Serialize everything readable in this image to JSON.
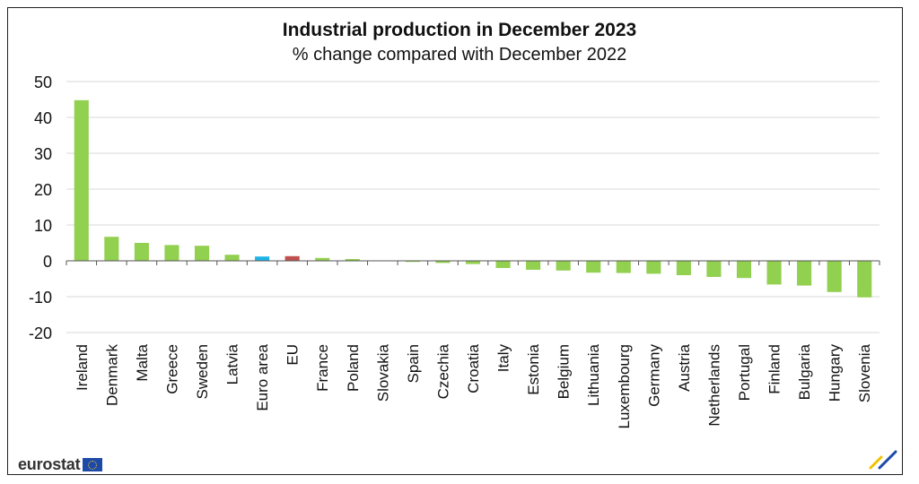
{
  "chart_data": {
    "type": "bar",
    "title": "Industrial production in December 2023",
    "subtitle": "% change compared with December 2022",
    "categories": [
      "Ireland",
      "Denmark",
      "Malta",
      "Greece",
      "Sweden",
      "Latvia",
      "Euro area",
      "EU",
      "France",
      "Poland",
      "Slovakia",
      "Spain",
      "Czechia",
      "Croatia",
      "Italy",
      "Estonia",
      "Belgium",
      "Lithuania",
      "Luxembourg",
      "Germany",
      "Austria",
      "Netherlands",
      "Portugal",
      "Finland",
      "Bulgaria",
      "Hungary",
      "Slovenia"
    ],
    "values": [
      44.8,
      6.7,
      5.0,
      4.4,
      4.2,
      1.7,
      1.2,
      1.3,
      0.8,
      0.5,
      0.0,
      -0.3,
      -0.6,
      -0.9,
      -2.0,
      -2.5,
      -2.7,
      -3.3,
      -3.4,
      -3.6,
      -4.0,
      -4.5,
      -4.8,
      -6.6,
      -6.9,
      -8.7,
      -10.2
    ],
    "bar_colors": [
      "#92d050",
      "#92d050",
      "#92d050",
      "#92d050",
      "#92d050",
      "#92d050",
      "#1fb4e8",
      "#c0504d",
      "#92d050",
      "#92d050",
      "#92d050",
      "#92d050",
      "#92d050",
      "#92d050",
      "#92d050",
      "#92d050",
      "#92d050",
      "#92d050",
      "#92d050",
      "#92d050",
      "#92d050",
      "#92d050",
      "#92d050",
      "#92d050",
      "#92d050",
      "#92d050",
      "#92d050"
    ],
    "ylim": [
      -20,
      50
    ],
    "yticks": [
      50,
      40,
      30,
      20,
      10,
      0,
      -10,
      -20
    ],
    "grid": true,
    "legend": "none"
  },
  "footer": {
    "logo_text": "eurostat"
  }
}
